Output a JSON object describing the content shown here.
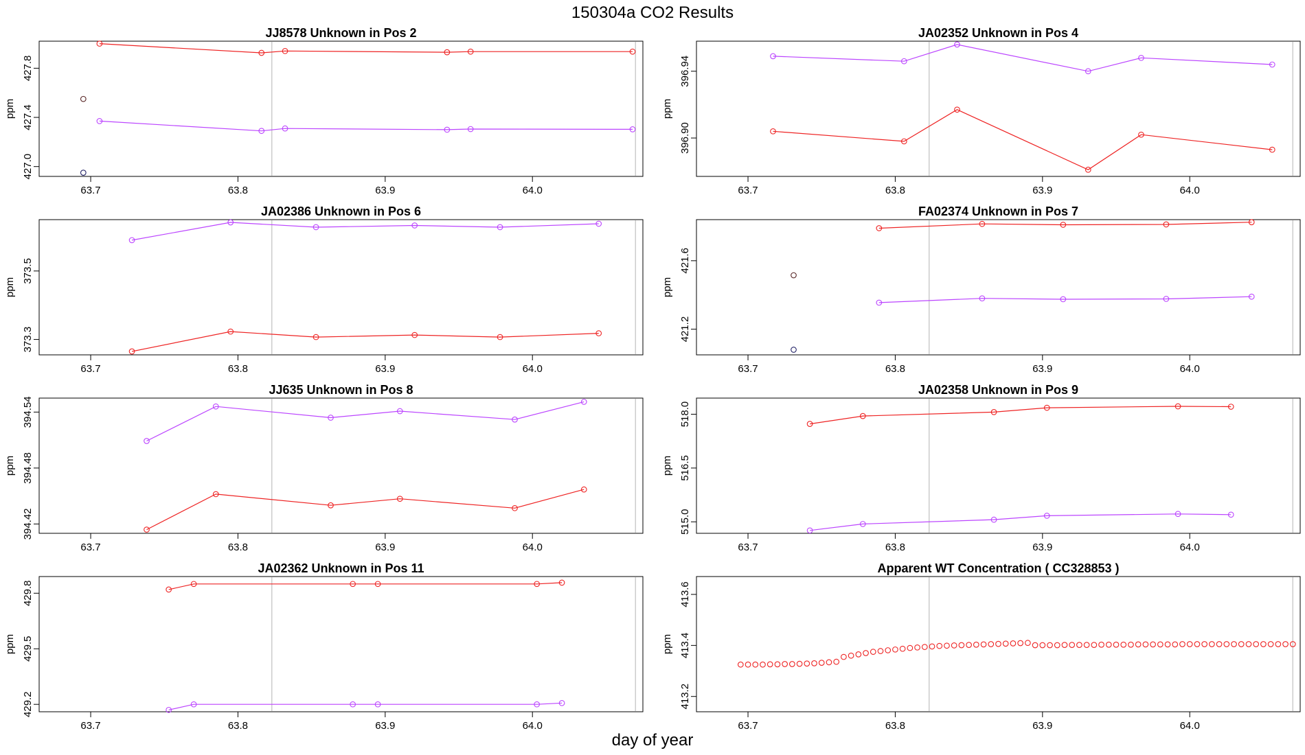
{
  "page": {
    "title": "150304a  CO2 Results",
    "xlabel": "day of year"
  },
  "colors": {
    "red": "#ee2222",
    "purple": "#bb44ff",
    "dark": "#552222",
    "navy": "#222266",
    "guide": "#cccccc"
  },
  "chart_data": [
    {
      "type": "line",
      "title": "JJ8578    Unknown in Pos 2",
      "xlabel": "",
      "ylabel": "ppm",
      "xlim": [
        63.665,
        64.075
      ],
      "ylim": [
        426.92,
        428.02
      ],
      "xticks": [
        63.7,
        63.8,
        63.9,
        64.0
      ],
      "xtick_labels": [
        "63.7",
        "63.8",
        "63.9",
        "64.0"
      ],
      "yticks": [
        427.0,
        427.4,
        427.8
      ],
      "ytick_labels": [
        "427.0",
        "427.4",
        "427.8"
      ],
      "vlines": [
        63.823,
        64.07
      ],
      "series": [
        {
          "name": "red",
          "color": "red",
          "line": true,
          "x": [
            63.706,
            63.816,
            63.832,
            63.942,
            63.958,
            64.068
          ],
          "y": [
            428.0,
            427.925,
            427.94,
            427.93,
            427.935,
            427.935
          ]
        },
        {
          "name": "purple",
          "color": "purple",
          "line": true,
          "x": [
            63.706,
            63.816,
            63.832,
            63.942,
            63.958,
            64.068
          ],
          "y": [
            427.37,
            427.29,
            427.31,
            427.3,
            427.305,
            427.303
          ]
        },
        {
          "name": "dark",
          "color": "dark",
          "line": false,
          "x": [
            63.695
          ],
          "y": [
            427.55
          ]
        },
        {
          "name": "navy",
          "color": "navy",
          "line": false,
          "x": [
            63.695
          ],
          "y": [
            426.95
          ]
        }
      ]
    },
    {
      "type": "line",
      "title": "JA02352    Unknown in Pos 4",
      "xlabel": "",
      "ylabel": "ppm",
      "xlim": [
        63.665,
        64.075
      ],
      "ylim": [
        396.877,
        396.958
      ],
      "xticks": [
        63.7,
        63.8,
        63.9,
        64.0
      ],
      "xtick_labels": [
        "63.7",
        "63.8",
        "63.9",
        "64.0"
      ],
      "yticks": [
        396.9,
        396.94
      ],
      "ytick_labels": [
        "396.90",
        "396.94"
      ],
      "vlines": [
        63.823,
        64.07
      ],
      "series": [
        {
          "name": "purple",
          "color": "purple",
          "line": true,
          "x": [
            63.717,
            63.806,
            63.842,
            63.931,
            63.967,
            64.056
          ],
          "y": [
            396.949,
            396.946,
            396.956,
            396.94,
            396.948,
            396.944
          ]
        },
        {
          "name": "red",
          "color": "red",
          "line": true,
          "x": [
            63.717,
            63.806,
            63.842,
            63.931,
            63.967,
            64.056
          ],
          "y": [
            396.904,
            396.898,
            396.917,
            396.881,
            396.902,
            396.893
          ]
        }
      ]
    },
    {
      "type": "line",
      "title": "JA02386    Unknown in Pos 6",
      "xlabel": "",
      "ylabel": "ppm",
      "xlim": [
        63.665,
        64.075
      ],
      "ylim": [
        373.255,
        373.65
      ],
      "xticks": [
        63.7,
        63.8,
        63.9,
        64.0
      ],
      "xtick_labels": [
        "63.7",
        "63.8",
        "63.9",
        "64.0"
      ],
      "yticks": [
        373.3,
        373.5
      ],
      "ytick_labels": [
        "373.3",
        "373.5"
      ],
      "vlines": [
        63.823,
        64.07
      ],
      "series": [
        {
          "name": "purple",
          "color": "purple",
          "line": true,
          "x": [
            63.728,
            63.795,
            63.853,
            63.92,
            63.978,
            64.045
          ],
          "y": [
            373.59,
            373.642,
            373.628,
            373.633,
            373.628,
            373.638
          ]
        },
        {
          "name": "red",
          "color": "red",
          "line": true,
          "x": [
            63.728,
            63.795,
            63.853,
            63.92,
            63.978,
            64.045
          ],
          "y": [
            373.265,
            373.323,
            373.307,
            373.313,
            373.307,
            373.318
          ]
        }
      ]
    },
    {
      "type": "line",
      "title": "FA02374    Unknown in Pos 7",
      "xlabel": "",
      "ylabel": "ppm",
      "xlim": [
        63.665,
        64.075
      ],
      "ylim": [
        421.05,
        421.84
      ],
      "xticks": [
        63.7,
        63.8,
        63.9,
        64.0
      ],
      "xtick_labels": [
        "63.7",
        "63.8",
        "63.9",
        "64.0"
      ],
      "yticks": [
        421.2,
        421.6
      ],
      "ytick_labels": [
        "421.2",
        "421.6"
      ],
      "vlines": [
        63.823,
        64.07
      ],
      "series": [
        {
          "name": "red",
          "color": "red",
          "line": true,
          "x": [
            63.789,
            63.859,
            63.914,
            63.984,
            64.042
          ],
          "y": [
            421.79,
            421.815,
            421.81,
            421.812,
            421.825
          ]
        },
        {
          "name": "purple",
          "color": "purple",
          "line": true,
          "x": [
            63.789,
            63.859,
            63.914,
            63.984,
            64.042
          ],
          "y": [
            421.355,
            421.38,
            421.375,
            421.377,
            421.39
          ]
        },
        {
          "name": "dark",
          "color": "dark",
          "line": false,
          "x": [
            63.731
          ],
          "y": [
            421.515
          ]
        },
        {
          "name": "navy",
          "color": "navy",
          "line": false,
          "x": [
            63.731
          ],
          "y": [
            421.08
          ]
        }
      ]
    },
    {
      "type": "line",
      "title": "JJ635    Unknown in Pos 8",
      "xlabel": "",
      "ylabel": "ppm",
      "xlim": [
        63.665,
        64.075
      ],
      "ylim": [
        394.41,
        394.555
      ],
      "xticks": [
        63.7,
        63.8,
        63.9,
        64.0
      ],
      "xtick_labels": [
        "63.7",
        "63.8",
        "63.9",
        "64.0"
      ],
      "yticks": [
        394.42,
        394.48,
        394.54
      ],
      "ytick_labels": [
        "394.42",
        "394.48",
        "394.54"
      ],
      "vlines": [
        63.823,
        64.07
      ],
      "series": [
        {
          "name": "purple",
          "color": "purple",
          "line": true,
          "x": [
            63.738,
            63.785,
            63.863,
            63.91,
            63.988,
            64.035
          ],
          "y": [
            394.509,
            394.546,
            394.534,
            394.541,
            394.532,
            394.551
          ]
        },
        {
          "name": "red",
          "color": "red",
          "line": true,
          "x": [
            63.738,
            63.785,
            63.863,
            63.91,
            63.988,
            64.035
          ],
          "y": [
            394.414,
            394.452,
            394.44,
            394.447,
            394.437,
            394.457
          ]
        }
      ]
    },
    {
      "type": "line",
      "title": "JA02358    Unknown in Pos 9",
      "xlabel": "",
      "ylabel": "ppm",
      "xlim": [
        63.665,
        64.075
      ],
      "ylim": [
        514.68,
        518.45
      ],
      "xticks": [
        63.7,
        63.8,
        63.9,
        64.0
      ],
      "xtick_labels": [
        "63.7",
        "63.8",
        "63.9",
        "64.0"
      ],
      "yticks": [
        515.0,
        516.5,
        518.0
      ],
      "ytick_labels": [
        "515.0",
        "516.5",
        "518.0"
      ],
      "vlines": [
        63.823,
        64.07
      ],
      "series": [
        {
          "name": "red",
          "color": "red",
          "line": true,
          "x": [
            63.742,
            63.778,
            63.867,
            63.903,
            63.992,
            64.028
          ],
          "y": [
            517.73,
            517.95,
            518.06,
            518.18,
            518.22,
            518.21
          ]
        },
        {
          "name": "purple",
          "color": "purple",
          "line": true,
          "x": [
            63.742,
            63.778,
            63.867,
            63.903,
            63.992,
            64.028
          ],
          "y": [
            514.76,
            514.94,
            515.06,
            515.17,
            515.22,
            515.2
          ]
        }
      ]
    },
    {
      "type": "line",
      "title": "JA02362    Unknown in Pos 11",
      "xlabel": "",
      "ylabel": "ppm",
      "xlim": [
        63.665,
        64.075
      ],
      "ylim": [
        429.16,
        429.89
      ],
      "xticks": [
        63.7,
        63.8,
        63.9,
        64.0
      ],
      "xtick_labels": [
        "63.7",
        "63.8",
        "63.9",
        "64.0"
      ],
      "yticks": [
        429.2,
        429.5,
        429.8
      ],
      "ytick_labels": [
        "429.2",
        "429.5",
        "429.8"
      ],
      "vlines": [
        63.823,
        64.07
      ],
      "series": [
        {
          "name": "red",
          "color": "red",
          "line": true,
          "x": [
            63.753,
            63.77,
            63.878,
            63.895,
            64.003,
            64.02
          ],
          "y": [
            429.82,
            429.85,
            429.85,
            429.85,
            429.85,
            429.857
          ]
        },
        {
          "name": "purple",
          "color": "purple",
          "line": true,
          "x": [
            63.753,
            63.77,
            63.878,
            63.895,
            64.003,
            64.02
          ],
          "y": [
            429.17,
            429.2,
            429.2,
            429.2,
            429.2,
            429.207
          ]
        }
      ]
    },
    {
      "type": "scatter",
      "title": "Apparent WT Concentration ( CC328853 )",
      "xlabel": "",
      "ylabel": "ppm",
      "xlim": [
        63.665,
        64.075
      ],
      "ylim": [
        413.14,
        413.67
      ],
      "xticks": [
        63.7,
        63.8,
        63.9,
        64.0
      ],
      "xtick_labels": [
        "63.7",
        "63.8",
        "63.9",
        "64.0"
      ],
      "yticks": [
        413.2,
        413.4,
        413.6
      ],
      "ytick_labels": [
        "413.2",
        "413.4",
        "413.6"
      ],
      "vlines": [
        63.823,
        64.07
      ],
      "series": [
        {
          "name": "red",
          "color": "red",
          "line": false,
          "x": [
            63.695,
            63.7,
            63.705,
            63.71,
            63.715,
            63.72,
            63.725,
            63.73,
            63.735,
            63.74,
            63.745,
            63.75,
            63.755,
            63.76,
            63.765,
            63.77,
            63.775,
            63.78,
            63.785,
            63.79,
            63.795,
            63.8,
            63.805,
            63.81,
            63.815,
            63.82,
            63.825,
            63.83,
            63.835,
            63.84,
            63.845,
            63.85,
            63.855,
            63.86,
            63.865,
            63.87,
            63.875,
            63.88,
            63.885,
            63.89,
            63.895,
            63.9,
            63.905,
            63.91,
            63.915,
            63.92,
            63.925,
            63.93,
            63.935,
            63.94,
            63.945,
            63.95,
            63.955,
            63.96,
            63.965,
            63.97,
            63.975,
            63.98,
            63.985,
            63.99,
            63.995,
            64.0,
            64.005,
            64.01,
            64.015,
            64.02,
            64.025,
            64.03,
            64.035,
            64.04,
            64.045,
            64.05,
            64.055,
            64.06,
            64.065,
            64.07
          ],
          "y": [
            413.325,
            413.325,
            413.325,
            413.325,
            413.326,
            413.326,
            413.327,
            413.327,
            413.328,
            413.329,
            413.33,
            413.332,
            413.334,
            413.336,
            413.355,
            413.36,
            413.365,
            413.37,
            413.375,
            413.378,
            413.381,
            413.384,
            413.387,
            413.39,
            413.392,
            413.394,
            413.396,
            413.398,
            413.399,
            413.4,
            413.401,
            413.402,
            413.403,
            413.404,
            413.405,
            413.406,
            413.407,
            413.408,
            413.409,
            413.41,
            413.401,
            413.401,
            413.401,
            413.401,
            413.402,
            413.402,
            413.402,
            413.402,
            413.402,
            413.403,
            413.403,
            413.403,
            413.403,
            413.403,
            413.404,
            413.404,
            413.404,
            413.404,
            413.404,
            413.404,
            413.405,
            413.405,
            413.405,
            413.405,
            413.405,
            413.405,
            413.405,
            413.405,
            413.405,
            413.405,
            413.405,
            413.405,
            413.405,
            413.405,
            413.405,
            413.405
          ]
        }
      ]
    }
  ]
}
